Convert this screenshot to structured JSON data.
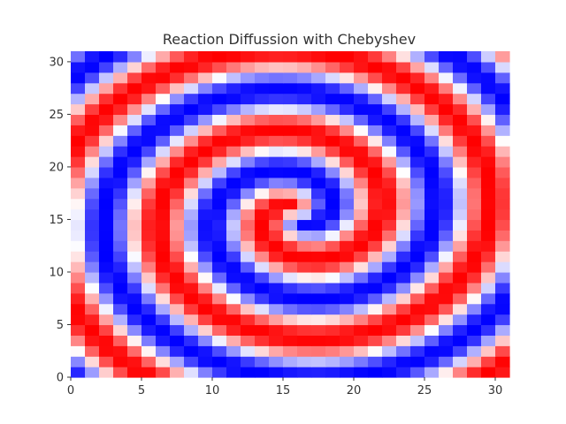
{
  "chart_data": {
    "type": "heatmap",
    "title": "Reaction Diffussion with Chebyshev",
    "xlabel": "",
    "ylabel": "",
    "grid_size": 31,
    "x_range": [
      0,
      31
    ],
    "y_range": [
      0,
      31
    ],
    "x_ticks": [
      0,
      5,
      10,
      15,
      20,
      25,
      30
    ],
    "y_ticks": [
      0,
      5,
      10,
      15,
      20,
      25,
      30
    ],
    "x_tick_labels": [
      "0",
      "5",
      "10",
      "15",
      "20",
      "25",
      "30"
    ],
    "y_tick_labels": [
      "0",
      "5",
      "10",
      "15",
      "20",
      "25",
      "30"
    ],
    "colormap": "bwr",
    "value_range": [
      -1,
      1
    ],
    "colors": {
      "low": "#0000ff",
      "mid": "#ffffff",
      "high": "#ff0000"
    },
    "field_description": "spiral wave pattern centered near (16, 15.5), sampled on a 31x31 grid",
    "spiral": {
      "center_x": 16.0,
      "center_y": 15.5,
      "spatial_frequency": 0.82,
      "phase": 0.2
    },
    "grid": false,
    "legend": "none"
  }
}
